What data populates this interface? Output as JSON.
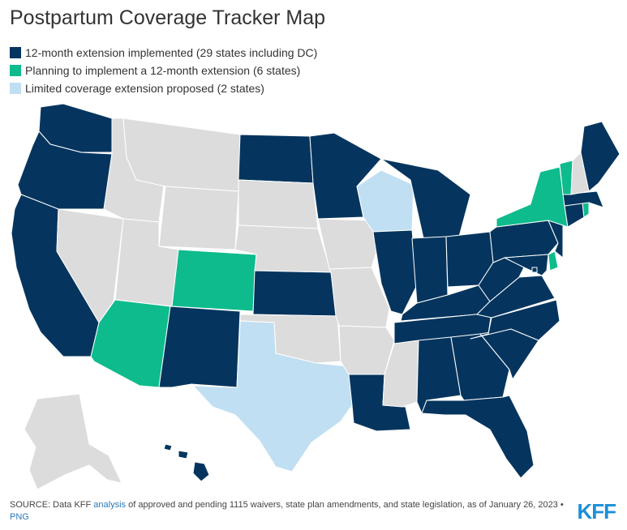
{
  "title": "Postpartum Coverage Tracker Map",
  "colors": {
    "implemented": "#05355e",
    "planning": "#0ebb8c",
    "limited": "#c1dff2",
    "none": "#dcdcdc"
  },
  "legend": [
    {
      "key": "implemented",
      "label": "12-month extension implemented (29 states including DC)"
    },
    {
      "key": "planning",
      "label": "Planning to implement a 12-month extension (6 states)"
    },
    {
      "key": "limited",
      "label": "Limited coverage extension proposed (2 states)"
    }
  ],
  "states": {
    "WA": "implemented",
    "OR": "implemented",
    "CA": "implemented",
    "NV": "none",
    "ID": "none",
    "MT": "none",
    "WY": "none",
    "UT": "none",
    "CO": "planning",
    "AZ": "planning",
    "NM": "implemented",
    "ND": "implemented",
    "SD": "none",
    "NE": "none",
    "KS": "implemented",
    "OK": "none",
    "TX": "limited",
    "MN": "implemented",
    "IA": "none",
    "MO": "none",
    "AR": "none",
    "LA": "implemented",
    "WI": "limited",
    "IL": "implemented",
    "MI": "implemented",
    "IN": "implemented",
    "OH": "implemented",
    "KY": "implemented",
    "TN": "implemented",
    "MS": "none",
    "AL": "implemented",
    "GA": "implemented",
    "FL": "implemented",
    "SC": "implemented",
    "NC": "implemented",
    "VA": "implemented",
    "WV": "implemented",
    "PA": "implemented",
    "NY": "planning",
    "VT": "planning",
    "NH": "none",
    "ME": "implemented",
    "MA": "implemented",
    "RI": "planning",
    "CT": "implemented",
    "NJ": "implemented",
    "DE": "planning",
    "MD": "implemented",
    "DC": "implemented",
    "AK": "none",
    "HI": "implemented"
  },
  "footer": {
    "prefix": "SOURCE: Data KFF ",
    "link": "analysis",
    "suffix": " of approved and pending 1115 waivers, state plan amendments, and state legislation, as of January 26, 2023 •",
    "png": "PNG"
  },
  "logo": "KFF"
}
